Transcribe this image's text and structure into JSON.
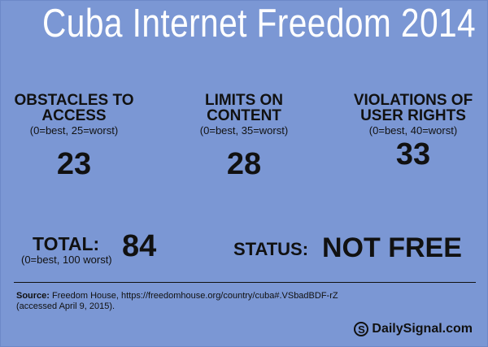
{
  "title": "Cuba Internet Freedom 2014",
  "metrics": [
    {
      "label_line1": "OBSTACLES TO",
      "label_line2": "ACCESS",
      "note": "(0=best, 25=worst)",
      "value": "23"
    },
    {
      "label_line1": "LIMITS ON",
      "label_line2": "CONTENT",
      "note": "(0=best, 35=worst)",
      "value": "28"
    },
    {
      "label_line1": "VIOLATIONS OF",
      "label_line2": "USER RIGHTS",
      "note": "(0=best, 40=worst)",
      "value": "33"
    }
  ],
  "total": {
    "label": "TOTAL:",
    "note": "(0=best, 100 worst)",
    "value": "84"
  },
  "status": {
    "label": "STATUS:",
    "value": "NOT FREE"
  },
  "source": {
    "prefix": "Source:",
    "text": "Freedom House, https://freedomhouse.org/country/cuba#.VSbadBDF-rZ (accessed April 9, 2015)."
  },
  "logo": {
    "mark": "S",
    "text": "DailySignal.com"
  },
  "colors": {
    "background": "#7b97d4",
    "title_text": "#ffffff",
    "body_text": "#111111"
  }
}
